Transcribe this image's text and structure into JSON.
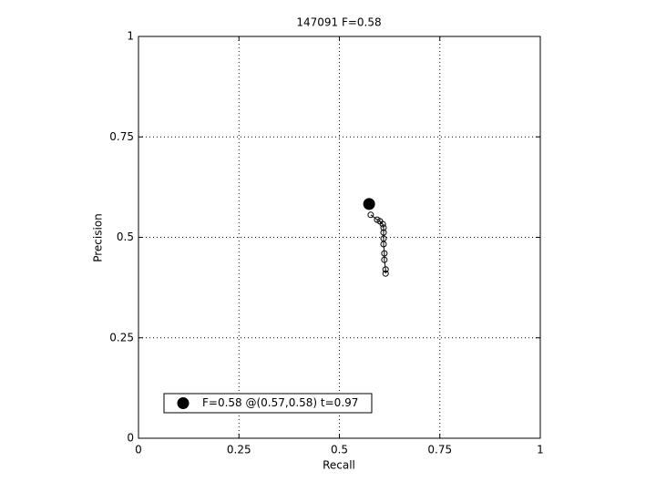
{
  "chart_data": {
    "type": "line",
    "title": "147091 F=0.58",
    "x_label": "Recall",
    "y_label": "Precision",
    "xlim": [
      0,
      1
    ],
    "ylim": [
      0,
      1
    ],
    "xticks": [
      0,
      0.25,
      0.5,
      0.75,
      1
    ],
    "yticks": [
      0,
      0.25,
      0.5,
      0.75,
      1
    ],
    "grid": true,
    "legend_position": "lower left",
    "series": [
      {
        "color": "#000000",
        "marker": "circle",
        "x": [
          0.578,
          0.594,
          0.601,
          0.608,
          0.61,
          0.61,
          0.61,
          0.61,
          0.612,
          0.612,
          0.615,
          0.615
        ],
        "values": [
          0.556,
          0.544,
          0.54,
          0.533,
          0.524,
          0.512,
          0.497,
          0.483,
          0.46,
          0.444,
          0.42,
          0.41
        ]
      },
      {
        "name": "F=0.58 @(0.57,0.58) t=0.97",
        "color": "#000000",
        "marker": "filled-circle",
        "x": [
          0.574
        ],
        "values": [
          0.583
        ]
      }
    ]
  }
}
